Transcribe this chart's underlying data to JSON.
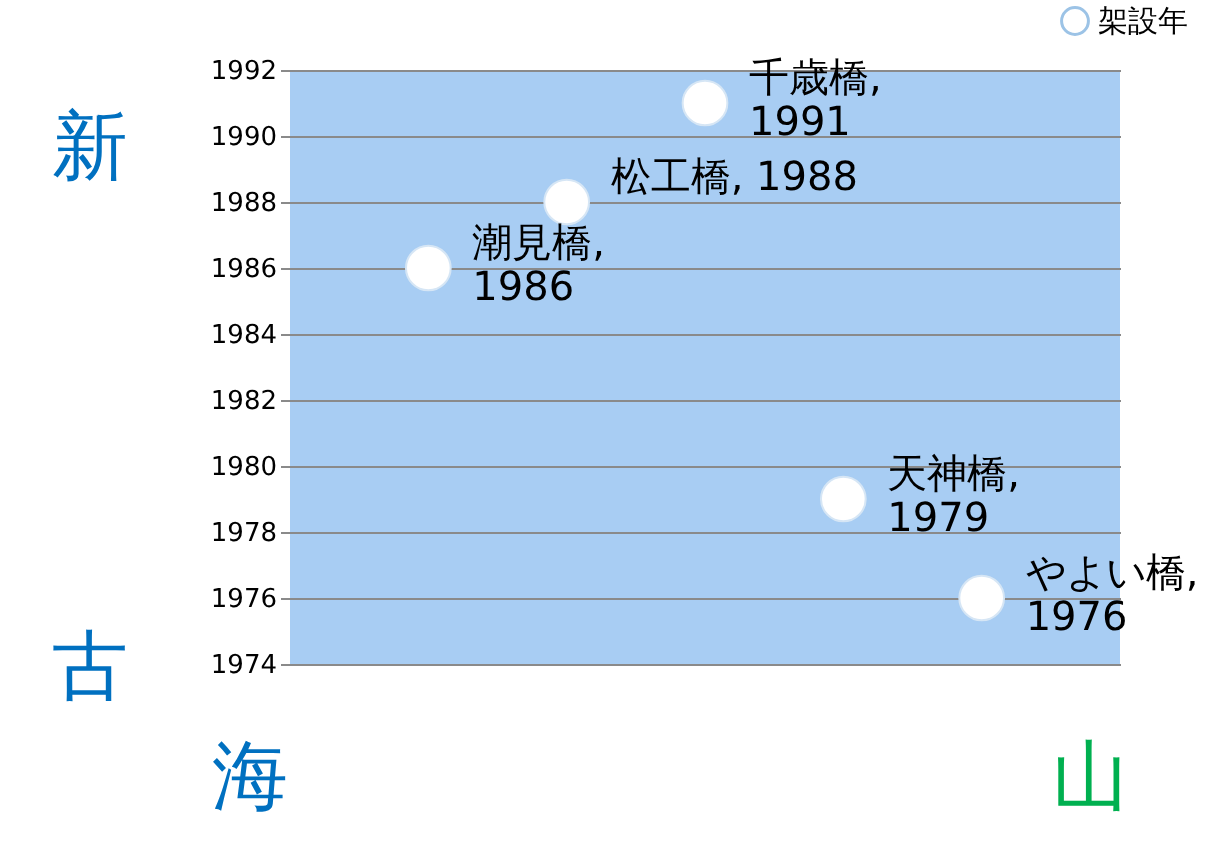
{
  "chart_data": {
    "type": "scatter",
    "categories": [
      null,
      null,
      null,
      null,
      null
    ],
    "series": [
      {
        "name": "架設年",
        "color": "#ffffff",
        "values": [
          1986,
          1988,
          1991,
          1979,
          1976
        ],
        "value_labels": [
          "潮見橋,\n1986",
          "松工橋, 1988",
          "千歳橋,\n1991",
          "天神橋,\n1979",
          "やよい橋,\n1976"
        ]
      }
    ],
    "ylim": [
      1974,
      1992
    ],
    "yticks": [
      1974,
      1976,
      1978,
      1980,
      1982,
      1984,
      1986,
      1988,
      1990,
      1992
    ],
    "grid": "y",
    "legend": "top right",
    "marker": "circle",
    "annotations": [
      "新",
      "古",
      "海",
      "山"
    ]
  }
}
